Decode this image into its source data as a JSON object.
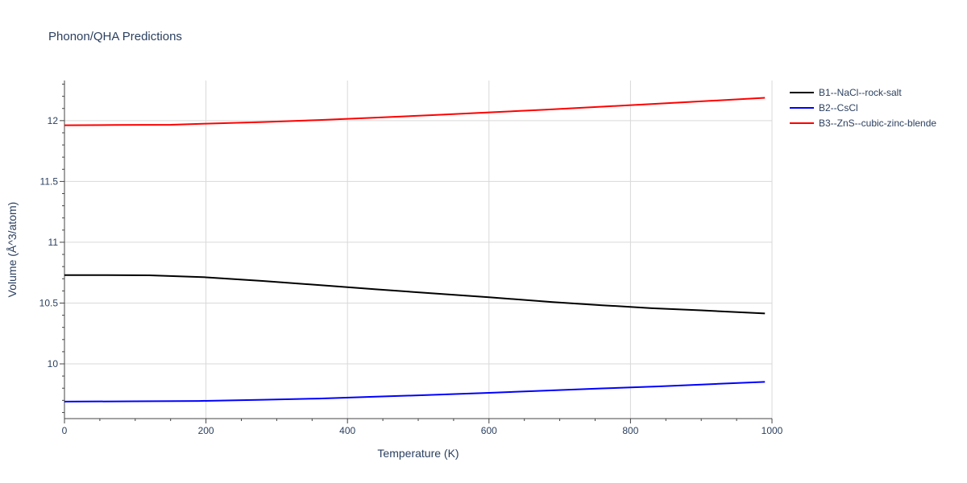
{
  "chart_data": {
    "type": "line",
    "title": "Phonon/QHA Predictions",
    "xlabel": "Temperature (K)",
    "ylabel": "Volume (Å^3/atom)",
    "xlim": [
      0,
      1000
    ],
    "ylim": [
      9.55,
      12.33
    ],
    "x_ticks": [
      0,
      200,
      400,
      600,
      800,
      1000
    ],
    "y_ticks": [
      10,
      10.5,
      11,
      11.5,
      12
    ],
    "x_tick_labels": [
      "0",
      "200",
      "400",
      "600",
      "800",
      "1000"
    ],
    "y_tick_labels": [
      "10",
      "10.5",
      "11",
      "11.5",
      "12"
    ],
    "grid": true,
    "legend_position": "top-right-outside",
    "series": [
      {
        "name": "B1--NaCl--rock-salt",
        "color": "#000000",
        "x": [
          0,
          60,
          120,
          200,
          280,
          360,
          440,
          520,
          600,
          690,
          760,
          830,
          900,
          990
        ],
        "y": [
          10.73,
          10.73,
          10.728,
          10.712,
          10.682,
          10.648,
          10.613,
          10.58,
          10.548,
          10.508,
          10.482,
          10.458,
          10.44,
          10.415
        ]
      },
      {
        "name": "B2--CsCl",
        "color": "#0000ff",
        "x": [
          0,
          100,
          190,
          280,
          360,
          440,
          520,
          600,
          680,
          760,
          840,
          920,
          990
        ],
        "y": [
          9.69,
          9.692,
          9.695,
          9.705,
          9.715,
          9.73,
          9.745,
          9.762,
          9.78,
          9.798,
          9.815,
          9.835,
          9.852
        ]
      },
      {
        "name": "B3--ZnS--cubic-zinc-blende",
        "color": "#ff0000",
        "x": [
          0,
          70,
          150,
          200,
          280,
          360,
          440,
          520,
          600,
          680,
          760,
          840,
          920,
          990
        ],
        "y": [
          11.962,
          11.964,
          11.966,
          11.975,
          11.988,
          12.005,
          12.025,
          12.045,
          12.068,
          12.09,
          12.115,
          12.14,
          12.165,
          12.188
        ]
      }
    ]
  }
}
